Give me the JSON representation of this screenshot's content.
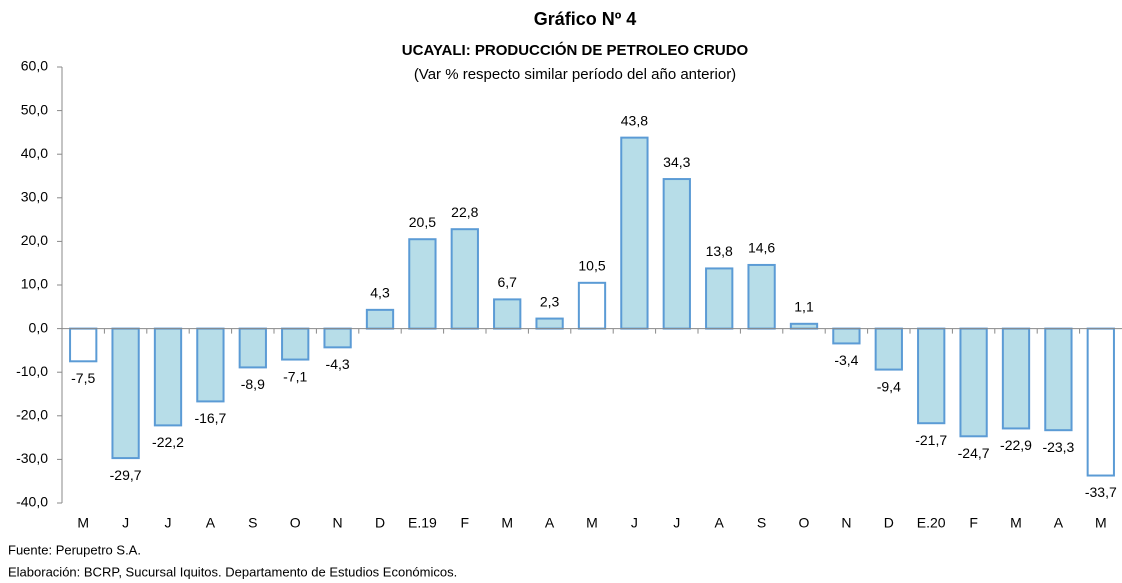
{
  "chart_data": {
    "type": "bar",
    "title": "Gráfico Nº 4",
    "subtitle": "UCAYALI: PRODUCCIÓN DE PETROLEO CRUDO",
    "note": "(Var % respecto similar período del año anterior)",
    "categories": [
      "M",
      "J",
      "J",
      "A",
      "S",
      "O",
      "N",
      "D",
      "E.19",
      "F",
      "M",
      "A",
      "M",
      "J",
      "J",
      "A",
      "S",
      "O",
      "N",
      "D",
      "E.20",
      "F",
      "M",
      "A",
      "M"
    ],
    "values": [
      -7.5,
      -29.7,
      -22.2,
      -16.7,
      -8.9,
      -7.1,
      -4.3,
      4.3,
      20.5,
      22.8,
      6.7,
      2.3,
      10.5,
      43.8,
      34.3,
      13.8,
      14.6,
      1.1,
      -3.4,
      -9.4,
      -21.7,
      -24.7,
      -22.9,
      -23.3,
      -33.7
    ],
    "value_labels": [
      "-7,5",
      "-29,7",
      "-22,2",
      "-16,7",
      "-8,9",
      "-7,1",
      "-4,3",
      "4,3",
      "20,5",
      "22,8",
      "6,7",
      "2,3",
      "10,5",
      "43,8",
      "34,3",
      "13,8",
      "14,6",
      "1,1",
      "-3,4",
      "-9,4",
      "-21,7",
      "-24,7",
      "-22,9",
      "-23,3",
      "-33,7"
    ],
    "colors": [
      "#ffffff",
      "#b7dde8",
      "#b7dde8",
      "#b7dde8",
      "#b7dde8",
      "#b7dde8",
      "#b7dde8",
      "#b7dde8",
      "#b7dde8",
      "#b7dde8",
      "#b7dde8",
      "#b7dde8",
      "#ffffff",
      "#b7dde8",
      "#b7dde8",
      "#b7dde8",
      "#b7dde8",
      "#b7dde8",
      "#b7dde8",
      "#b7dde8",
      "#b7dde8",
      "#b7dde8",
      "#b7dde8",
      "#b7dde8",
      "#ffffff"
    ],
    "edge_color": "#5b9bd5",
    "ylim": [
      -40,
      60
    ],
    "yticks": [
      {
        "value": -40,
        "label": "-40,0"
      },
      {
        "value": -30,
        "label": "-30,0"
      },
      {
        "value": -20,
        "label": "-20,0"
      },
      {
        "value": -10,
        "label": "-10,0"
      },
      {
        "value": 0,
        "label": "0,0"
      },
      {
        "value": 10,
        "label": "10,0"
      },
      {
        "value": 20,
        "label": "20,0"
      },
      {
        "value": 30,
        "label": "30,0"
      },
      {
        "value": 40,
        "label": "40,0"
      },
      {
        "value": 50,
        "label": "50,0"
      },
      {
        "value": 60,
        "label": "60,0"
      }
    ],
    "grid": false,
    "source": "Fuente: Perupetro S.A.",
    "credit": "Elaboración: BCRP, Sucursal Iquitos. Departamento de Estudios Económicos."
  }
}
